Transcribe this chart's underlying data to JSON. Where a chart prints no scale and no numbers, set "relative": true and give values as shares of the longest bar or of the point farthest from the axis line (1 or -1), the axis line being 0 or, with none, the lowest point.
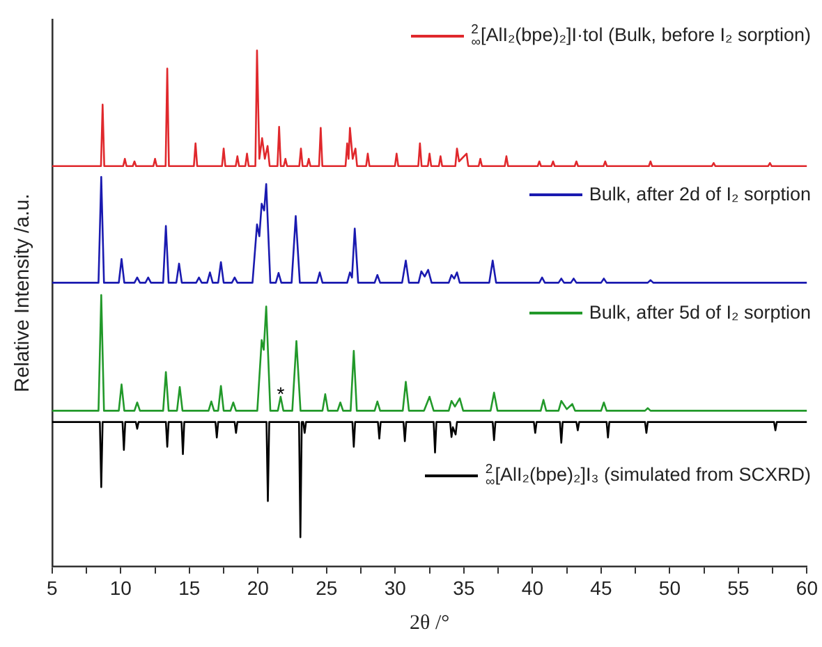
{
  "chart_data": {
    "type": "line",
    "relative": true,
    "xlabel": "2θ /°",
    "ylabel": "Relative Intensity /a.u.",
    "xlim": [
      5,
      60
    ],
    "xticks": [
      5,
      {
        "value": 7.5,
        "label": null
      },
      10,
      {
        "value": 12.5,
        "label": null
      },
      15,
      {
        "value": 17.5,
        "label": null
      },
      20,
      {
        "value": 22.5,
        "label": null
      },
      25,
      {
        "value": 27.5,
        "label": null
      },
      30,
      {
        "value": 32.5,
        "label": null
      },
      35,
      {
        "value": 37.5,
        "label": null
      },
      40,
      {
        "value": 42.5,
        "label": null
      },
      45,
      {
        "value": 47.5,
        "label": null
      },
      50,
      {
        "value": 52.5,
        "label": null
      },
      55,
      {
        "value": 57.5,
        "label": null
      },
      60
    ],
    "tick_labels": "x",
    "grid": false,
    "legend": "right",
    "marker": "none",
    "line_style": "solid",
    "annotations": [
      {
        "text": "*",
        "x": 21.65,
        "y": 0.329
      }
    ],
    "series": [
      {
        "name": "$^{2}$$_{∞}$[AlI₂(bpe)₂]I·tol (Bulk, before I₂ sorption)",
        "color": "#e0282c",
        "x": [
          5,
          8.56,
          8.68,
          8.8,
          10.18,
          10.3,
          10.42,
          10.88,
          11.0,
          11.12,
          12.38,
          12.5,
          12.62,
          13.27,
          13.39,
          13.51,
          15.33,
          15.45,
          15.57,
          17.38,
          17.5,
          17.62,
          18.38,
          18.5,
          18.62,
          19.08,
          19.2,
          19.32,
          19.81,
          19.93,
          20.1,
          20.3,
          20.5,
          20.7,
          20.85,
          21.42,
          21.54,
          21.66,
          21.88,
          22.0,
          22.12,
          23.01,
          23.13,
          23.25,
          23.58,
          23.7,
          23.82,
          24.45,
          24.57,
          24.69,
          26.38,
          26.5,
          26.6,
          26.7,
          26.9,
          27.1,
          27.22,
          27.88,
          28.0,
          28.12,
          29.98,
          30.1,
          30.22,
          31.68,
          31.8,
          31.92,
          32.38,
          32.5,
          32.62,
          33.18,
          33.3,
          33.42,
          34.38,
          34.5,
          34.65,
          35.2,
          35.32,
          36.08,
          36.2,
          36.32,
          37.98,
          38.1,
          38.22,
          40.38,
          40.5,
          40.62,
          41.38,
          41.5,
          41.62,
          43.08,
          43.2,
          43.32,
          45.18,
          45.3,
          45.42,
          48.48,
          48.6,
          48.72,
          53.08,
          53.2,
          53.32,
          57.18,
          57.3,
          57.42,
          60
        ],
        "values": [
          0.776,
          0.776,
          0.895,
          0.776,
          0.776,
          0.79,
          0.776,
          0.776,
          0.785,
          0.776,
          0.776,
          0.79,
          0.776,
          0.776,
          0.965,
          0.776,
          0.776,
          0.82,
          0.776,
          0.776,
          0.81,
          0.776,
          0.776,
          0.795,
          0.776,
          0.776,
          0.8,
          0.776,
          0.776,
          1.0,
          0.79,
          0.83,
          0.79,
          0.815,
          0.776,
          0.776,
          0.852,
          0.776,
          0.776,
          0.79,
          0.776,
          0.776,
          0.81,
          0.776,
          0.776,
          0.79,
          0.776,
          0.776,
          0.85,
          0.776,
          0.776,
          0.82,
          0.79,
          0.85,
          0.79,
          0.81,
          0.776,
          0.776,
          0.8,
          0.776,
          0.776,
          0.8,
          0.776,
          0.776,
          0.82,
          0.776,
          0.776,
          0.8,
          0.776,
          0.776,
          0.795,
          0.776,
          0.776,
          0.81,
          0.785,
          0.8,
          0.776,
          0.776,
          0.79,
          0.776,
          0.776,
          0.795,
          0.776,
          0.776,
          0.785,
          0.776,
          0.776,
          0.785,
          0.776,
          0.776,
          0.785,
          0.776,
          0.776,
          0.785,
          0.776,
          0.776,
          0.785,
          0.776,
          0.776,
          0.782,
          0.776,
          0.776,
          0.782,
          0.776,
          0.776
        ]
      },
      {
        "name": "Bulk, after 2d of I₂ sorption",
        "color": "#1a1ab0",
        "x": [
          5,
          8.38,
          8.58,
          8.78,
          9.86,
          10.06,
          10.26,
          11.0,
          11.2,
          11.4,
          11.8,
          12.0,
          12.2,
          13.09,
          13.29,
          13.49,
          14.05,
          14.25,
          14.45,
          15.5,
          15.7,
          15.9,
          16.3,
          16.5,
          16.7,
          17.1,
          17.3,
          17.5,
          18.1,
          18.3,
          18.5,
          19.6,
          19.93,
          20.1,
          20.27,
          20.45,
          20.6,
          20.9,
          21.3,
          21.5,
          21.7,
          22.45,
          22.75,
          23.05,
          24.3,
          24.5,
          24.7,
          26.5,
          26.7,
          26.85,
          27.05,
          27.3,
          28.5,
          28.7,
          28.9,
          30.5,
          30.77,
          31.0,
          31.7,
          31.9,
          32.15,
          32.4,
          32.65,
          33.9,
          34.1,
          34.3,
          34.5,
          34.7,
          36.85,
          37.1,
          37.35,
          40.5,
          40.7,
          40.9,
          41.9,
          42.1,
          42.3,
          42.8,
          43.0,
          43.2,
          45.0,
          45.2,
          45.4,
          48.4,
          48.6,
          48.8,
          60
        ],
        "values": [
          0.55,
          0.55,
          0.755,
          0.55,
          0.55,
          0.596,
          0.55,
          0.55,
          0.56,
          0.55,
          0.55,
          0.56,
          0.55,
          0.55,
          0.66,
          0.55,
          0.55,
          0.587,
          0.55,
          0.55,
          0.56,
          0.55,
          0.55,
          0.57,
          0.55,
          0.55,
          0.59,
          0.55,
          0.55,
          0.56,
          0.55,
          0.55,
          0.663,
          0.64,
          0.703,
          0.69,
          0.741,
          0.55,
          0.55,
          0.569,
          0.55,
          0.55,
          0.679,
          0.55,
          0.55,
          0.57,
          0.55,
          0.55,
          0.57,
          0.56,
          0.655,
          0.55,
          0.55,
          0.565,
          0.55,
          0.55,
          0.593,
          0.55,
          0.55,
          0.572,
          0.562,
          0.575,
          0.55,
          0.55,
          0.565,
          0.558,
          0.57,
          0.55,
          0.55,
          0.593,
          0.55,
          0.55,
          0.56,
          0.55,
          0.55,
          0.558,
          0.55,
          0.55,
          0.558,
          0.55,
          0.55,
          0.558,
          0.55,
          0.55,
          0.555,
          0.55,
          0.55
        ]
      },
      {
        "name": "Bulk, after 5d of I₂ sorption",
        "color": "#22992a",
        "x": [
          5,
          8.38,
          8.58,
          8.78,
          9.86,
          10.06,
          10.26,
          11.0,
          11.2,
          11.4,
          13.09,
          13.29,
          13.49,
          14.1,
          14.3,
          14.5,
          16.4,
          16.6,
          16.8,
          17.1,
          17.3,
          17.5,
          18.0,
          18.2,
          18.4,
          19.95,
          20.27,
          20.42,
          20.6,
          20.9,
          21.45,
          21.65,
          21.85,
          22.5,
          22.8,
          23.1,
          24.7,
          24.9,
          25.1,
          25.8,
          26.0,
          26.2,
          26.75,
          26.98,
          27.2,
          28.5,
          28.7,
          28.9,
          30.55,
          30.77,
          31.0,
          32.1,
          32.5,
          32.8,
          33.9,
          34.1,
          34.35,
          34.7,
          34.95,
          36.95,
          37.2,
          37.45,
          40.6,
          40.8,
          41.0,
          41.9,
          42.1,
          42.5,
          42.9,
          43.1,
          45.0,
          45.2,
          45.4,
          48.2,
          48.4,
          48.6,
          60
        ],
        "values": [
          0.302,
          0.302,
          0.526,
          0.302,
          0.302,
          0.353,
          0.302,
          0.302,
          0.318,
          0.302,
          0.302,
          0.377,
          0.302,
          0.302,
          0.348,
          0.302,
          0.302,
          0.32,
          0.302,
          0.302,
          0.35,
          0.302,
          0.302,
          0.318,
          0.302,
          0.302,
          0.439,
          0.42,
          0.504,
          0.302,
          0.302,
          0.329,
          0.302,
          0.302,
          0.437,
          0.302,
          0.302,
          0.334,
          0.302,
          0.302,
          0.318,
          0.302,
          0.302,
          0.418,
          0.302,
          0.302,
          0.32,
          0.302,
          0.302,
          0.358,
          0.302,
          0.302,
          0.329,
          0.302,
          0.302,
          0.321,
          0.31,
          0.326,
          0.302,
          0.302,
          0.337,
          0.302,
          0.302,
          0.323,
          0.302,
          0.302,
          0.321,
          0.305,
          0.315,
          0.302,
          0.302,
          0.318,
          0.302,
          0.302,
          0.307,
          0.302,
          0.302
        ]
      },
      {
        "name": "$^{2}$$_{∞}$[AlI₂(bpe)₂]I₃ (simulated from SCXRD)",
        "color": "#000000",
        "x": [
          5,
          8.48,
          8.58,
          8.68,
          10.13,
          10.23,
          10.33,
          11.1,
          11.2,
          11.3,
          13.29,
          13.39,
          13.49,
          14.43,
          14.53,
          14.63,
          16.9,
          17.0,
          17.1,
          18.3,
          18.4,
          18.5,
          20.62,
          20.72,
          20.82,
          22.99,
          23.09,
          23.19,
          23.3,
          23.4,
          23.5,
          26.88,
          26.98,
          27.08,
          28.74,
          28.84,
          28.94,
          30.6,
          30.7,
          30.8,
          32.8,
          32.9,
          33.0,
          34.0,
          34.1,
          34.2,
          34.4,
          34.5,
          37.1,
          37.2,
          37.3,
          40.1,
          40.2,
          40.3,
          42.0,
          42.1,
          42.2,
          43.2,
          43.3,
          43.4,
          45.4,
          45.5,
          45.6,
          48.2,
          48.3,
          48.4,
          57.6,
          57.7,
          57.8,
          60
        ],
        "values": [
          0.28,
          0.28,
          0.154,
          0.28,
          0.28,
          0.226,
          0.28,
          0.28,
          0.267,
          0.28,
          0.28,
          0.232,
          0.28,
          0.28,
          0.218,
          0.28,
          0.28,
          0.25,
          0.28,
          0.28,
          0.259,
          0.28,
          0.28,
          0.127,
          0.28,
          0.28,
          0.057,
          0.28,
          0.28,
          0.259,
          0.28,
          0.28,
          0.232,
          0.28,
          0.28,
          0.248,
          0.28,
          0.28,
          0.243,
          0.28,
          0.28,
          0.221,
          0.28,
          0.28,
          0.251,
          0.27,
          0.256,
          0.28,
          0.28,
          0.245,
          0.28,
          0.28,
          0.259,
          0.28,
          0.28,
          0.24,
          0.28,
          0.28,
          0.264,
          0.28,
          0.28,
          0.25,
          0.28,
          0.28,
          0.259,
          0.28,
          0.28,
          0.264,
          0.28,
          0.28
        ]
      }
    ]
  }
}
